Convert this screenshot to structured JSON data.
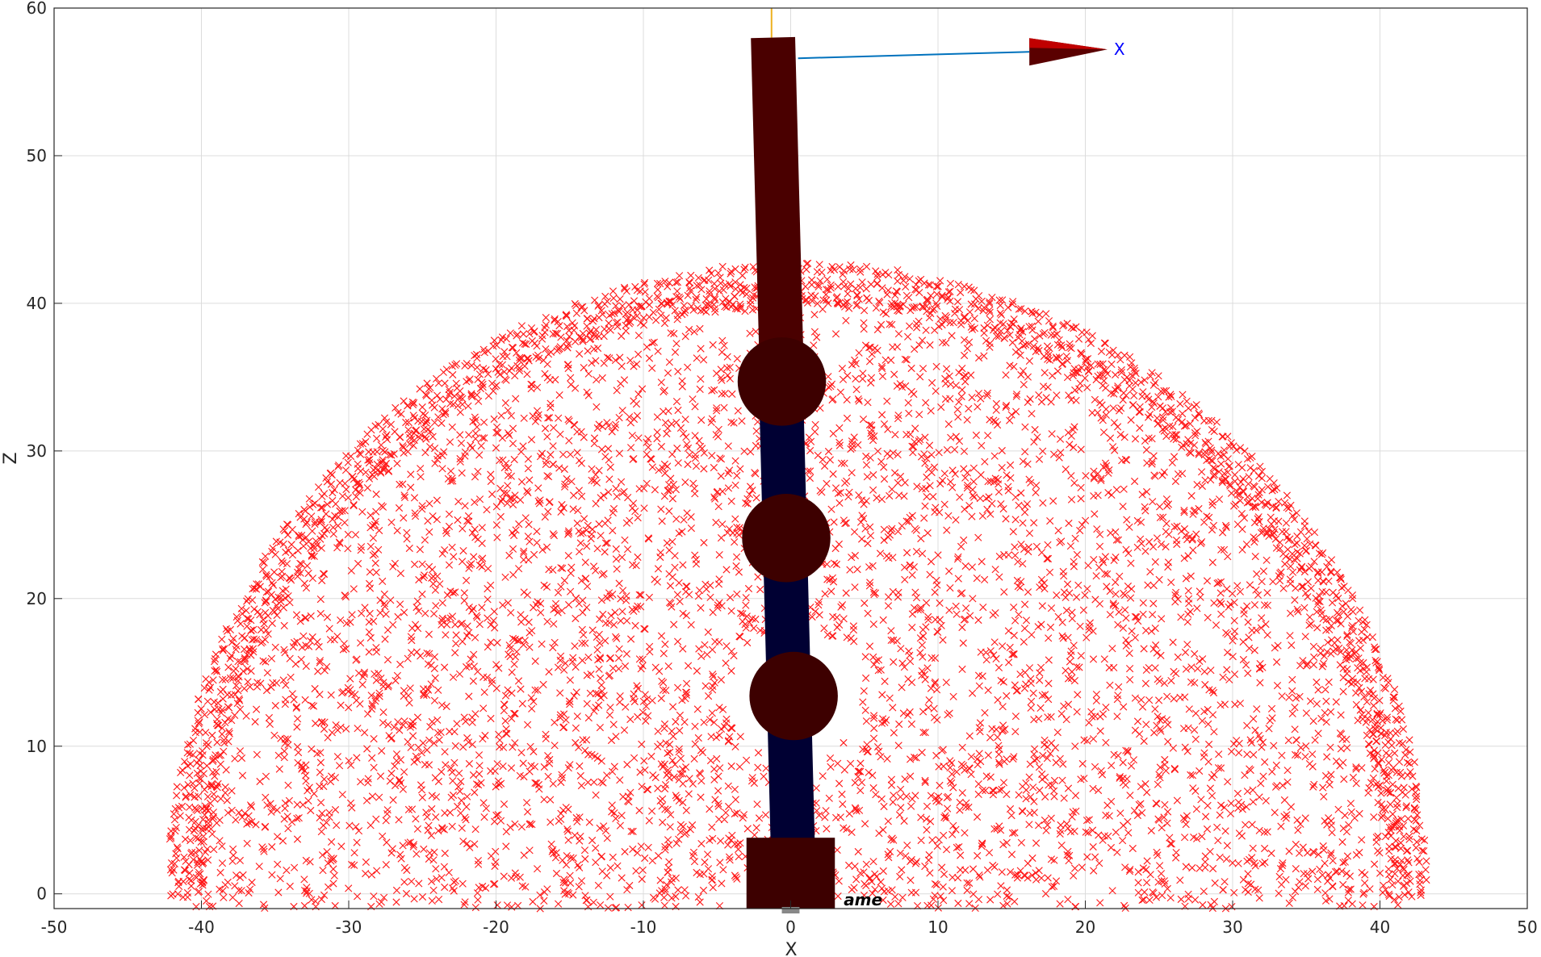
{
  "chart_data": {
    "type": "scatter",
    "title": "",
    "xlabel": "X",
    "ylabel": "Z",
    "xlim": [
      -50,
      50
    ],
    "ylim": [
      -1,
      60
    ],
    "xticks": [
      -50,
      -40,
      -30,
      -20,
      -10,
      0,
      10,
      20,
      30,
      40,
      50
    ],
    "yticks": [
      0,
      10,
      20,
      30,
      40,
      50,
      60
    ],
    "xtick_labels": [
      "-50",
      "-40",
      "-30",
      "-20",
      "-10",
      "0",
      "10",
      "20",
      "30",
      "40",
      "50"
    ],
    "ytick_labels": [
      "0",
      "10",
      "20",
      "30",
      "40",
      "50",
      "60"
    ],
    "grid": true,
    "legend": "none",
    "series": [
      {
        "marker": "x",
        "color": "#ff0000",
        "workspace": {
          "center": [
            0.5,
            0
          ],
          "outer_radius": 42.8,
          "inner_radius": 4.6,
          "inner_center": [
            0.3,
            13.5
          ],
          "z_min": -1
        }
      }
    ],
    "robot": {
      "base": {
        "x": [
          -3,
          3
        ],
        "z": [
          -1,
          3.8
        ],
        "color": "#3d0000"
      },
      "link_lower": {
        "from": [
          0.2,
          1
        ],
        "to": [
          -0.7,
          36
        ],
        "width": 3,
        "color": "#000033"
      },
      "link_upper": {
        "from": [
          -0.6,
          35
        ],
        "to": [
          -1.2,
          58
        ],
        "width": 3,
        "color": "#4a0000"
      },
      "joints": [
        {
          "x": 0.2,
          "z": 13.4,
          "r": 3,
          "color": "#3d0000"
        },
        {
          "x": -0.3,
          "z": 24.1,
          "r": 3,
          "color": "#3d0000"
        },
        {
          "x": -0.6,
          "z": 34.7,
          "r": 3,
          "color": "#3d0000"
        }
      ],
      "frame_axis": {
        "label": "X",
        "label_color": "#0000ff",
        "from": [
          0.5,
          56.6
        ],
        "to": [
          21.5,
          57.2
        ],
        "line_color": "#0072bd",
        "head_color": "#c00000"
      },
      "vertical_axis_color": "#edb120",
      "base_label": "ame"
    }
  }
}
